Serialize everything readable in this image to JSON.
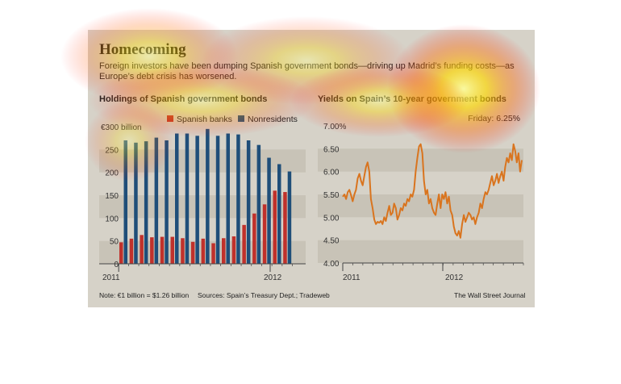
{
  "header": {
    "title": "Homecoming",
    "subtitle": "Foreign investors have been dumping Spanish government bonds—driving up Madrid’s funding costs—as Europe’s debt crisis has worsened."
  },
  "footer": {
    "note": "Note: €1 billion = $1.26 billion",
    "sources": "Sources: Spain’s Treasury Dept.; Tradeweb",
    "credit": "The Wall Street Journal"
  },
  "colors": {
    "spanish_banks": "#c0312b",
    "nonresidents": "#1f4e79",
    "yield_line": "#d9741e",
    "band": "#c8c3b7",
    "panel": "#d6d2c8"
  },
  "chart_data": [
    {
      "type": "bar",
      "title": "Holdings of Spanish government bonds",
      "y_unit_label": "€300 billion",
      "ylim": [
        0,
        300
      ],
      "yticks": [
        "€300 billion",
        "250",
        "200",
        "150",
        "100",
        "50",
        "0"
      ],
      "x_tick_labels": [
        "2011",
        "2012"
      ],
      "legend": "top-right",
      "series": [
        {
          "name": "Spanish banks",
          "color": "#c0312b",
          "values": [
            47,
            55,
            63,
            58,
            59,
            59,
            56,
            48,
            55,
            45,
            56,
            60,
            85,
            110,
            130,
            160,
            157
          ]
        },
        {
          "name": "Nonresidents",
          "color": "#1f4e79",
          "values": [
            270,
            265,
            268,
            276,
            270,
            285,
            285,
            280,
            295,
            280,
            285,
            283,
            270,
            260,
            232,
            218,
            202
          ]
        }
      ]
    },
    {
      "type": "line",
      "title": "Yields on Spain’s 10-year government bonds",
      "annotation": "Friday: 6.25%",
      "ylim": [
        4.0,
        7.0
      ],
      "yticks": [
        "7.00%",
        "6.50",
        "6.00",
        "5.50",
        "5.00",
        "4.50",
        "4.00"
      ],
      "x_tick_labels": [
        "2011",
        "2012"
      ],
      "series": [
        {
          "name": "Yield",
          "color": "#d9741e",
          "values": [
            5.45,
            5.5,
            5.4,
            5.55,
            5.6,
            5.48,
            5.35,
            5.5,
            5.6,
            5.85,
            5.95,
            5.8,
            5.7,
            5.9,
            6.1,
            6.2,
            6.0,
            5.4,
            5.2,
            4.95,
            4.85,
            4.9,
            4.88,
            4.92,
            4.85,
            5.0,
            4.92,
            5.1,
            5.25,
            5.05,
            5.1,
            5.3,
            5.2,
            4.95,
            5.05,
            5.2,
            5.15,
            5.3,
            5.25,
            5.4,
            5.35,
            5.5,
            5.45,
            5.6,
            6.0,
            6.3,
            6.55,
            6.6,
            6.4,
            5.8,
            5.5,
            5.6,
            5.3,
            5.4,
            5.2,
            5.1,
            5.05,
            5.3,
            5.5,
            5.2,
            5.5,
            5.4,
            5.55,
            5.3,
            5.45,
            5.15,
            5.05,
            4.8,
            4.65,
            4.6,
            4.7,
            4.55,
            4.85,
            5.05,
            4.9,
            5.0,
            5.1,
            5.05,
            4.95,
            5.0,
            4.85,
            5.0,
            5.1,
            5.3,
            5.2,
            5.4,
            5.55,
            5.5,
            5.6,
            5.75,
            5.9,
            5.7,
            5.8,
            5.95,
            5.75,
            5.9,
            6.0,
            5.8,
            6.1,
            6.3,
            6.2,
            6.4,
            6.25,
            6.6,
            6.45,
            6.2,
            6.4,
            6.0,
            6.25
          ]
        }
      ]
    }
  ]
}
